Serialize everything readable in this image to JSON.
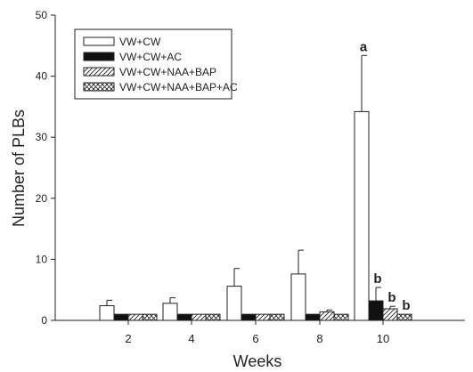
{
  "chart_data": {
    "type": "bar",
    "xlabel": "Weeks",
    "ylabel": "Number of PLBs",
    "ylim": [
      0,
      50
    ],
    "yticks": [
      0,
      10,
      20,
      30,
      40,
      50
    ],
    "categories": [
      "2",
      "4",
      "6",
      "8",
      "10"
    ],
    "legend_position": "top-left",
    "grid": false,
    "series": [
      {
        "name": "VW+CW",
        "pattern": "white",
        "values": [
          2.4,
          2.8,
          5.6,
          7.6,
          34.2
        ],
        "errors": [
          0.9,
          0.9,
          2.9,
          3.9,
          9.2
        ]
      },
      {
        "name": "VW+CW+AC",
        "pattern": "black",
        "values": [
          1.0,
          1.0,
          1.0,
          1.0,
          3.2
        ],
        "errors": [
          0,
          0,
          0,
          0,
          2.2
        ]
      },
      {
        "name": "VW+CW+NAA+BAP",
        "pattern": "hatch",
        "values": [
          1.0,
          1.0,
          1.0,
          1.4,
          1.9
        ],
        "errors": [
          0,
          0,
          0,
          0.3,
          0.4
        ]
      },
      {
        "name": "VW+CW+NAA+BAP+AC",
        "pattern": "crosshatch",
        "values": [
          1.0,
          1.0,
          1.0,
          1.0,
          1.0
        ],
        "errors": [
          0,
          0,
          0,
          0,
          0
        ]
      }
    ],
    "annotations": [
      {
        "text": "a",
        "category_index": 4,
        "series_index": 0
      },
      {
        "text": "b",
        "category_index": 4,
        "series_index": 1
      },
      {
        "text": "b",
        "category_index": 4,
        "series_index": 2
      },
      {
        "text": "b",
        "category_index": 4,
        "series_index": 3
      }
    ]
  }
}
